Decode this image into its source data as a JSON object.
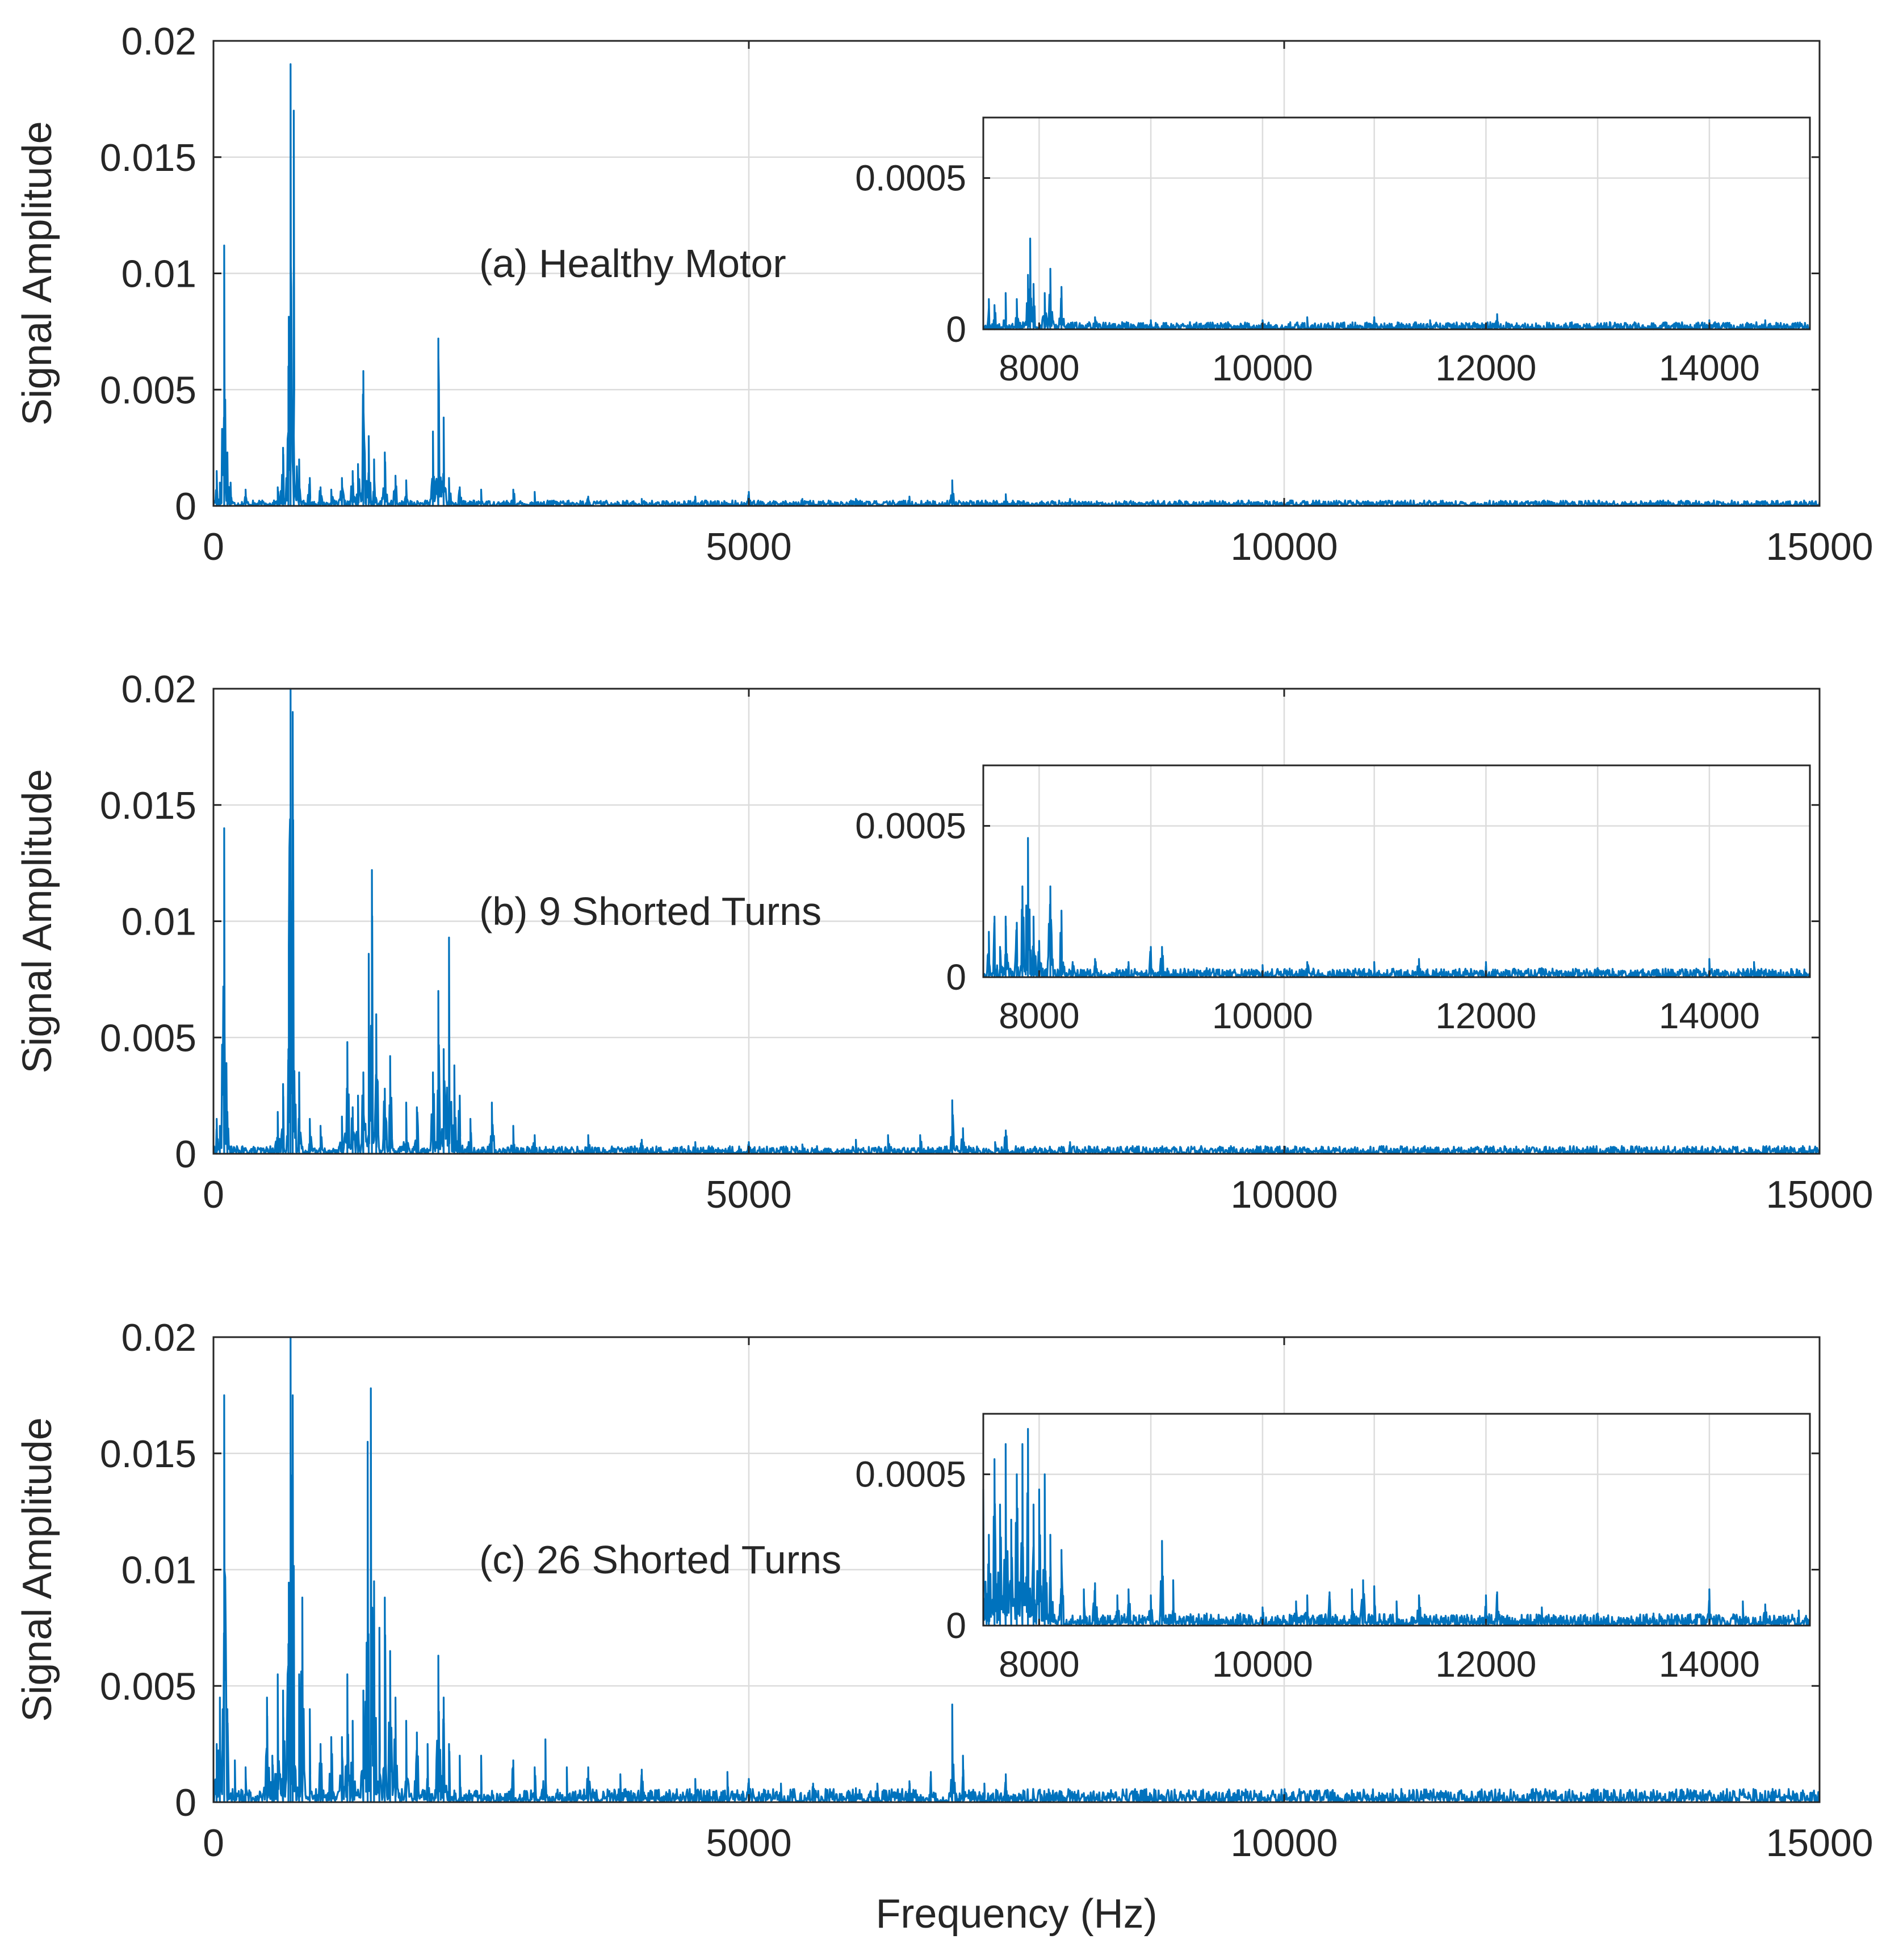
{
  "figure": {
    "xlabel": "Frequency (Hz)",
    "series_color": "#0072BD",
    "grid_color": "#dcdcdc",
    "axes_color": "#262626"
  },
  "chart_data": [
    {
      "type": "line",
      "annotation": "(a) Healthy Motor",
      "ylabel": "Signal Amplitude",
      "xlim": [
        0,
        15000
      ],
      "ylim": [
        0,
        0.02
      ],
      "xticks": [
        0,
        5000,
        10000,
        15000
      ],
      "yticks": [
        0,
        0.005,
        0.01,
        0.015,
        0.02
      ],
      "xtick_labels": [
        "0",
        "5000",
        "10000",
        "15000"
      ],
      "ytick_labels": [
        "0",
        "0.005",
        "0.01",
        "0.015",
        "0.02"
      ],
      "grid": true,
      "peaks": [
        [
          30,
          0.0015
        ],
        [
          60,
          0.001
        ],
        [
          100,
          0.0112
        ],
        [
          130,
          0.0023
        ],
        [
          160,
          0.001
        ],
        [
          300,
          0.0007
        ],
        [
          600,
          0.0008
        ],
        [
          650,
          0.0025
        ],
        [
          700,
          0.006
        ],
        [
          720,
          0.019
        ],
        [
          750,
          0.017
        ],
        [
          800,
          0.002
        ],
        [
          900,
          0.0012
        ],
        [
          1000,
          0.0008
        ],
        [
          1100,
          0.0007
        ],
        [
          1200,
          0.0012
        ],
        [
          1300,
          0.0015
        ],
        [
          1350,
          0.0018
        ],
        [
          1400,
          0.0058
        ],
        [
          1450,
          0.003
        ],
        [
          1500,
          0.002
        ],
        [
          1600,
          0.0023
        ],
        [
          1700,
          0.0013
        ],
        [
          1800,
          0.0011
        ],
        [
          2050,
          0.0032
        ],
        [
          2100,
          0.0072
        ],
        [
          2150,
          0.0038
        ],
        [
          2200,
          0.0012
        ],
        [
          2300,
          0.0008
        ],
        [
          2500,
          0.0007
        ],
        [
          2800,
          0.0007
        ],
        [
          3000,
          0.0006
        ],
        [
          3500,
          0.0004
        ],
        [
          4000,
          0.0003
        ],
        [
          4500,
          0.0004
        ],
        [
          5000,
          0.0006
        ],
        [
          5500,
          0.0003
        ],
        [
          6000,
          0.0003
        ],
        [
          6500,
          0.0004
        ],
        [
          6900,
          0.0011
        ],
        [
          7400,
          0.0005
        ],
        [
          8000,
          0.0003
        ]
      ],
      "noise_floor": 0.00025,
      "inset": {
        "xlim": [
          7500,
          14900
        ],
        "ylim": [
          0,
          0.0007
        ],
        "xticks": [
          8000,
          10000,
          12000,
          14000
        ],
        "yticks": [
          0,
          0.0005
        ],
        "xtick_labels": [
          "8000",
          "10000",
          "12000",
          "14000"
        ],
        "ytick_labels": [
          "0",
          "0.0005"
        ],
        "peaks": [
          [
            7550,
            0.0001
          ],
          [
            7600,
            8e-05
          ],
          [
            7700,
            0.00012
          ],
          [
            7800,
            0.0001
          ],
          [
            7900,
            0.00018
          ],
          [
            7920,
            0.0003
          ],
          [
            7950,
            0.00015
          ],
          [
            8050,
            0.00012
          ],
          [
            8100,
            0.0002
          ],
          [
            8200,
            0.00014
          ],
          [
            8500,
            4e-05
          ],
          [
            9000,
            3e-05
          ],
          [
            9500,
            2e-05
          ],
          [
            10000,
            3e-05
          ],
          [
            10400,
            4e-05
          ],
          [
            11000,
            4e-05
          ],
          [
            11500,
            3e-05
          ],
          [
            12100,
            5e-05
          ],
          [
            12600,
            2e-05
          ],
          [
            13000,
            2e-05
          ],
          [
            13500,
            2e-05
          ],
          [
            14000,
            3e-05
          ],
          [
            14500,
            3e-05
          ]
        ],
        "noise_floor": 2.5e-05
      }
    },
    {
      "type": "line",
      "annotation": "(b) 9 Shorted Turns",
      "ylabel": "Signal Amplitude",
      "xlim": [
        0,
        15000
      ],
      "ylim": [
        0,
        0.02
      ],
      "xticks": [
        0,
        5000,
        10000,
        15000
      ],
      "yticks": [
        0,
        0.005,
        0.01,
        0.015,
        0.02
      ],
      "xtick_labels": [
        "0",
        "5000",
        "10000",
        "15000"
      ],
      "ytick_labels": [
        "0",
        "0.005",
        "0.01",
        "0.015",
        "0.02"
      ],
      "grid": true,
      "peaks": [
        [
          30,
          0.0015
        ],
        [
          60,
          0.0012
        ],
        [
          100,
          0.014
        ],
        [
          130,
          0.0018
        ],
        [
          600,
          0.0018
        ],
        [
          650,
          0.003
        ],
        [
          700,
          0.0045
        ],
        [
          720,
          0.02
        ],
        [
          740,
          0.019
        ],
        [
          800,
          0.0035
        ],
        [
          900,
          0.0015
        ],
        [
          1000,
          0.0012
        ],
        [
          1200,
          0.0016
        ],
        [
          1250,
          0.0048
        ],
        [
          1300,
          0.002
        ],
        [
          1350,
          0.0025
        ],
        [
          1400,
          0.0035
        ],
        [
          1450,
          0.0086
        ],
        [
          1480,
          0.0122
        ],
        [
          1520,
          0.006
        ],
        [
          1600,
          0.0028
        ],
        [
          1650,
          0.0042
        ],
        [
          1800,
          0.0022
        ],
        [
          1900,
          0.002
        ],
        [
          2050,
          0.0035
        ],
        [
          2100,
          0.007
        ],
        [
          2150,
          0.0045
        ],
        [
          2200,
          0.0093
        ],
        [
          2250,
          0.0038
        ],
        [
          2300,
          0.0025
        ],
        [
          2400,
          0.0015
        ],
        [
          2600,
          0.0022
        ],
        [
          2800,
          0.0012
        ],
        [
          3000,
          0.0008
        ],
        [
          3500,
          0.0008
        ],
        [
          4000,
          0.0006
        ],
        [
          4500,
          0.0005
        ],
        [
          5000,
          0.0005
        ],
        [
          5500,
          0.0004
        ],
        [
          6000,
          0.0006
        ],
        [
          6300,
          0.0008
        ],
        [
          6600,
          0.0008
        ],
        [
          6900,
          0.0023
        ],
        [
          7000,
          0.0011
        ],
        [
          7300,
          0.0005
        ],
        [
          7400,
          0.001
        ],
        [
          8000,
          0.0005
        ],
        [
          8300,
          0.0002
        ]
      ],
      "noise_floor": 0.00035,
      "inset": {
        "xlim": [
          7500,
          14900
        ],
        "ylim": [
          0,
          0.0007
        ],
        "xticks": [
          8000,
          10000,
          12000,
          14000
        ],
        "yticks": [
          0,
          0.0005
        ],
        "xtick_labels": [
          "8000",
          "10000",
          "12000",
          "14000"
        ],
        "ytick_labels": [
          "0",
          "0.0005"
        ],
        "peaks": [
          [
            7550,
            0.00015
          ],
          [
            7600,
            0.0002
          ],
          [
            7650,
            0.0001
          ],
          [
            7700,
            0.0002
          ],
          [
            7800,
            0.00018
          ],
          [
            7850,
            0.0003
          ],
          [
            7900,
            0.00046
          ],
          [
            7950,
            0.0002
          ],
          [
            8000,
            0.00012
          ],
          [
            8100,
            0.0003
          ],
          [
            8200,
            0.00022
          ],
          [
            8300,
            5e-05
          ],
          [
            8500,
            6e-05
          ],
          [
            8800,
            5e-05
          ],
          [
            9000,
            0.0001
          ],
          [
            9100,
            0.0001
          ],
          [
            9500,
            3e-05
          ],
          [
            10000,
            4e-05
          ],
          [
            10400,
            5e-05
          ],
          [
            11000,
            5e-05
          ],
          [
            11400,
            6e-05
          ],
          [
            12000,
            5e-05
          ],
          [
            12500,
            3e-05
          ],
          [
            13000,
            3e-05
          ],
          [
            14000,
            6e-05
          ],
          [
            14400,
            5e-05
          ]
        ],
        "noise_floor": 3e-05
      }
    },
    {
      "type": "line",
      "annotation": "(c) 26 Shorted Turns",
      "ylabel": "Signal Amplitude",
      "xlim": [
        0,
        15000
      ],
      "ylim": [
        0,
        0.02
      ],
      "xticks": [
        0,
        5000,
        10000,
        15000
      ],
      "yticks": [
        0,
        0.005,
        0.01,
        0.015,
        0.02
      ],
      "xtick_labels": [
        "0",
        "5000",
        "10000",
        "15000"
      ],
      "ytick_labels": [
        "0",
        "0.005",
        "0.01",
        "0.015",
        "0.02"
      ],
      "grid": true,
      "peaks": [
        [
          30,
          0.0025
        ],
        [
          60,
          0.0045
        ],
        [
          100,
          0.0175
        ],
        [
          130,
          0.004
        ],
        [
          200,
          0.0018
        ],
        [
          300,
          0.0015
        ],
        [
          500,
          0.0045
        ],
        [
          550,
          0.002
        ],
        [
          600,
          0.0055
        ],
        [
          650,
          0.0048
        ],
        [
          700,
          0.0068
        ],
        [
          720,
          0.0202
        ],
        [
          740,
          0.0175
        ],
        [
          800,
          0.0055
        ],
        [
          830,
          0.0088
        ],
        [
          900,
          0.004
        ],
        [
          1000,
          0.0025
        ],
        [
          1100,
          0.0028
        ],
        [
          1200,
          0.0028
        ],
        [
          1250,
          0.0055
        ],
        [
          1300,
          0.0035
        ],
        [
          1400,
          0.0048
        ],
        [
          1440,
          0.0155
        ],
        [
          1470,
          0.0178
        ],
        [
          1500,
          0.0095
        ],
        [
          1550,
          0.0075
        ],
        [
          1600,
          0.0088
        ],
        [
          1650,
          0.0065
        ],
        [
          1700,
          0.0045
        ],
        [
          1800,
          0.0035
        ],
        [
          1900,
          0.003
        ],
        [
          2000,
          0.0025
        ],
        [
          2100,
          0.0063
        ],
        [
          2150,
          0.0045
        ],
        [
          2200,
          0.0025
        ],
        [
          2300,
          0.002
        ],
        [
          2500,
          0.002
        ],
        [
          2800,
          0.0018
        ],
        [
          3000,
          0.0015
        ],
        [
          3100,
          0.0027
        ],
        [
          3300,
          0.0015
        ],
        [
          3500,
          0.0015
        ],
        [
          3800,
          0.0012
        ],
        [
          4000,
          0.0014
        ],
        [
          4500,
          0.001
        ],
        [
          4800,
          0.0013
        ],
        [
          5000,
          0.001
        ],
        [
          5300,
          0.0008
        ],
        [
          5600,
          0.0008
        ],
        [
          6000,
          0.0006
        ],
        [
          6200,
          0.0008
        ],
        [
          6500,
          0.0009
        ],
        [
          6700,
          0.0013
        ],
        [
          6900,
          0.0042
        ],
        [
          7000,
          0.002
        ],
        [
          7200,
          0.0008
        ],
        [
          7400,
          0.0012
        ],
        [
          7800,
          0.0005
        ],
        [
          8000,
          0.0005
        ],
        [
          8300,
          0.0002
        ]
      ],
      "noise_floor": 0.0006,
      "inset": {
        "xlim": [
          7500,
          14900
        ],
        "ylim": [
          0,
          0.0007
        ],
        "xticks": [
          8000,
          10000,
          12000,
          14000
        ],
        "yticks": [
          0,
          0.0005
        ],
        "xtick_labels": [
          "8000",
          "10000",
          "12000",
          "14000"
        ],
        "ytick_labels": [
          "0",
          "0.0005"
        ],
        "peaks": [
          [
            7500,
            0.00045
          ],
          [
            7550,
            0.0003
          ],
          [
            7600,
            0.00055
          ],
          [
            7650,
            0.0004
          ],
          [
            7700,
            0.0006
          ],
          [
            7750,
            0.00035
          ],
          [
            7800,
            0.0005
          ],
          [
            7850,
            0.0006
          ],
          [
            7900,
            0.00065
          ],
          [
            7950,
            0.0004
          ],
          [
            8000,
            0.00045
          ],
          [
            8050,
            0.0005
          ],
          [
            8100,
            0.0003
          ],
          [
            8200,
            0.00025
          ],
          [
            8400,
            0.00012
          ],
          [
            8500,
            0.00014
          ],
          [
            8700,
            0.0001
          ],
          [
            8800,
            0.00012
          ],
          [
            9000,
            0.0001
          ],
          [
            9100,
            0.00028
          ],
          [
            9200,
            0.00015
          ],
          [
            9500,
            4e-05
          ],
          [
            9800,
            4e-05
          ],
          [
            10000,
            6e-05
          ],
          [
            10300,
            8e-05
          ],
          [
            10400,
            0.0001
          ],
          [
            10600,
            0.00011
          ],
          [
            10800,
            0.00012
          ],
          [
            10900,
            0.00015
          ],
          [
            11000,
            0.00013
          ],
          [
            11200,
            8e-05
          ],
          [
            11400,
            0.0001
          ],
          [
            12000,
            0.0001
          ],
          [
            12100,
            0.00011
          ],
          [
            12500,
            6e-05
          ],
          [
            13000,
            4e-05
          ],
          [
            13500,
            4e-05
          ],
          [
            14000,
            0.00012
          ],
          [
            14300,
            8e-05
          ],
          [
            14500,
            7e-05
          ],
          [
            14800,
            5e-05
          ]
        ],
        "noise_floor": 4e-05
      }
    }
  ]
}
